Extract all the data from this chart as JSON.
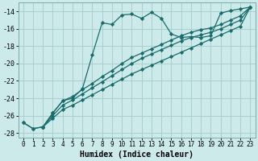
{
  "xlabel": "Humidex (Indice chaleur)",
  "bg_color": "#cdeaea",
  "grid_color": "#aacfcf",
  "line_color": "#1a6b6b",
  "xlim": [
    -0.5,
    23.5
  ],
  "ylim": [
    -28.5,
    -13.0
  ],
  "yticks": [
    -28,
    -26,
    -24,
    -22,
    -20,
    -18,
    -16,
    -14
  ],
  "xticks": [
    0,
    1,
    2,
    3,
    4,
    5,
    6,
    7,
    8,
    9,
    10,
    11,
    12,
    13,
    14,
    15,
    16,
    17,
    18,
    19,
    20,
    21,
    22,
    23
  ],
  "series": [
    {
      "x": [
        0,
        1,
        2,
        3,
        4,
        5,
        6,
        7,
        8,
        9,
        10,
        11,
        12,
        13,
        14,
        15,
        16,
        17,
        18,
        19,
        20,
        21,
        22,
        23
      ],
      "y": [
        -26.8,
        -27.5,
        -27.3,
        -25.7,
        -24.3,
        -24.0,
        -22.9,
        -19.0,
        -15.3,
        -15.5,
        -14.4,
        -14.3,
        -14.8,
        -14.1,
        -14.8,
        -16.6,
        -17.0,
        -16.9,
        -17.0,
        -16.8,
        -14.2,
        -13.9,
        -13.7,
        -13.5
      ]
    },
    {
      "x": [
        2,
        3,
        4,
        5,
        6,
        7,
        8,
        9,
        10,
        11,
        12,
        13,
        14,
        15,
        16,
        17,
        18,
        19,
        20,
        21,
        22,
        23
      ],
      "y": [
        -27.3,
        -25.7,
        -24.3,
        -23.8,
        -23.0,
        -22.3,
        -21.5,
        -20.8,
        -20.0,
        -19.3,
        -18.8,
        -18.3,
        -17.8,
        -17.3,
        -16.8,
        -16.4,
        -16.1,
        -15.9,
        -15.5,
        -15.0,
        -14.5,
        -13.5
      ]
    },
    {
      "x": [
        2,
        3,
        4,
        5,
        6,
        7,
        8,
        9,
        10,
        11,
        12,
        13,
        14,
        15,
        16,
        17,
        18,
        19,
        20,
        21,
        22,
        23
      ],
      "y": [
        -27.3,
        -26.0,
        -24.8,
        -24.2,
        -23.5,
        -22.8,
        -22.1,
        -21.4,
        -20.7,
        -20.0,
        -19.4,
        -18.9,
        -18.4,
        -17.9,
        -17.4,
        -17.0,
        -16.7,
        -16.4,
        -16.0,
        -15.5,
        -15.0,
        -13.5
      ]
    },
    {
      "x": [
        0,
        1,
        2,
        3,
        4,
        5,
        6,
        7,
        8,
        9,
        10,
        11,
        12,
        13,
        14,
        15,
        16,
        17,
        18,
        19,
        20,
        21,
        22,
        23
      ],
      "y": [
        -26.8,
        -27.5,
        -27.3,
        -26.3,
        -25.3,
        -24.8,
        -24.2,
        -23.6,
        -23.0,
        -22.4,
        -21.8,
        -21.2,
        -20.7,
        -20.2,
        -19.7,
        -19.2,
        -18.7,
        -18.2,
        -17.7,
        -17.2,
        -16.7,
        -16.2,
        -15.7,
        -13.5
      ]
    }
  ]
}
